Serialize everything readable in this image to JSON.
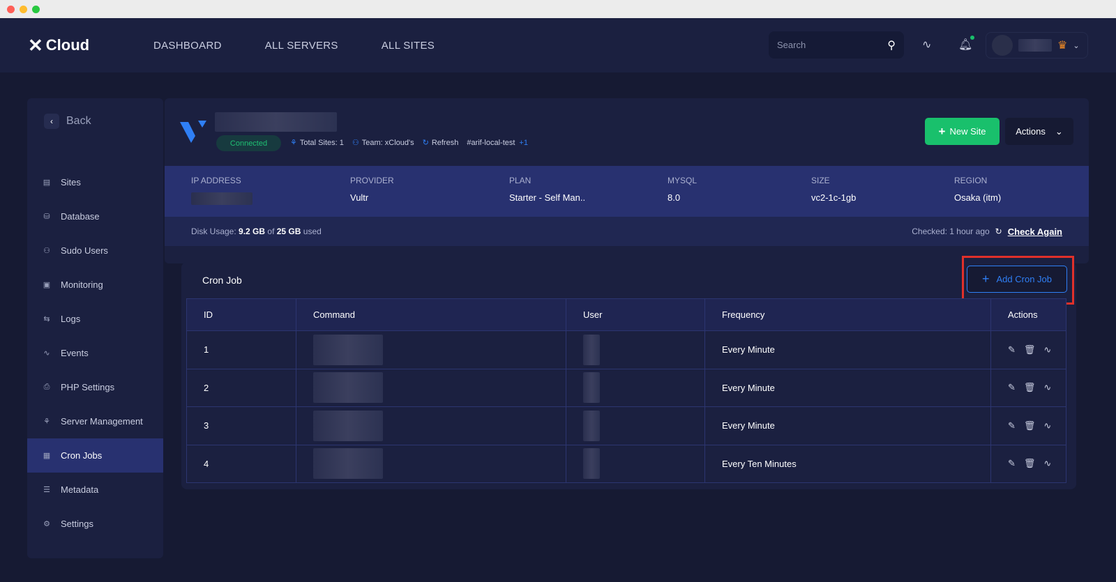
{
  "header": {
    "brand": "Cloud",
    "nav": [
      "DASHBOARD",
      "ALL SERVERS",
      "ALL SITES"
    ],
    "search_placeholder": "Search",
    "icons": [
      "search-icon",
      "activity-icon",
      "bell-icon",
      "crown-icon",
      "chevron-down-icon"
    ],
    "notification_color": "#19c06c"
  },
  "sidebar": {
    "back": "Back",
    "items": [
      {
        "label": "Sites",
        "icon": "sites-icon"
      },
      {
        "label": "Database",
        "icon": "database-icon"
      },
      {
        "label": "Sudo Users",
        "icon": "users-icon"
      },
      {
        "label": "Monitoring",
        "icon": "monitor-icon"
      },
      {
        "label": "Logs",
        "icon": "logs-icon"
      },
      {
        "label": "Events",
        "icon": "activity-icon"
      },
      {
        "label": "PHP Settings",
        "icon": "php-icon"
      },
      {
        "label": "Server Management",
        "icon": "server-icon"
      },
      {
        "label": "Cron Jobs",
        "icon": "cron-icon",
        "active": true
      },
      {
        "label": "Metadata",
        "icon": "metadata-icon"
      },
      {
        "label": "Settings",
        "icon": "gear-icon"
      }
    ]
  },
  "server": {
    "status": "Connected",
    "total_sites": "Total Sites: 1",
    "team": "Team: xCloud's",
    "refresh": "Refresh",
    "tag": "#arif-local-test",
    "tag_more": "+1",
    "new_site": "New Site",
    "actions": "Actions",
    "info": [
      {
        "label": "IP ADDRESS",
        "value": ""
      },
      {
        "label": "PROVIDER",
        "value": "Vultr"
      },
      {
        "label": "PLAN",
        "value": "Starter - Self Man.."
      },
      {
        "label": "MYSQL",
        "value": "8.0"
      },
      {
        "label": "SIZE",
        "value": "vc2-1c-1gb"
      },
      {
        "label": "REGION",
        "value": "Osaka (itm)"
      }
    ],
    "disk_label": "Disk Usage:",
    "disk_used": "9.2 GB",
    "disk_of": "of",
    "disk_total": "25 GB",
    "disk_suffix": "used",
    "checked": "Checked: 1 hour ago",
    "check_again": "Check Again"
  },
  "cron": {
    "title": "Cron Job",
    "add_button": "Add Cron Job",
    "columns": [
      "ID",
      "Command",
      "User",
      "Frequency",
      "Actions"
    ],
    "rows": [
      {
        "id": "1",
        "frequency": "Every Minute"
      },
      {
        "id": "2",
        "frequency": "Every Minute"
      },
      {
        "id": "3",
        "frequency": "Every Minute"
      },
      {
        "id": "4",
        "frequency": "Every Ten Minutes"
      }
    ]
  },
  "colors": {
    "accent": "#2f7ff5",
    "success": "#19c06c",
    "active_band": "#283170",
    "highlight": "#e0302a"
  }
}
